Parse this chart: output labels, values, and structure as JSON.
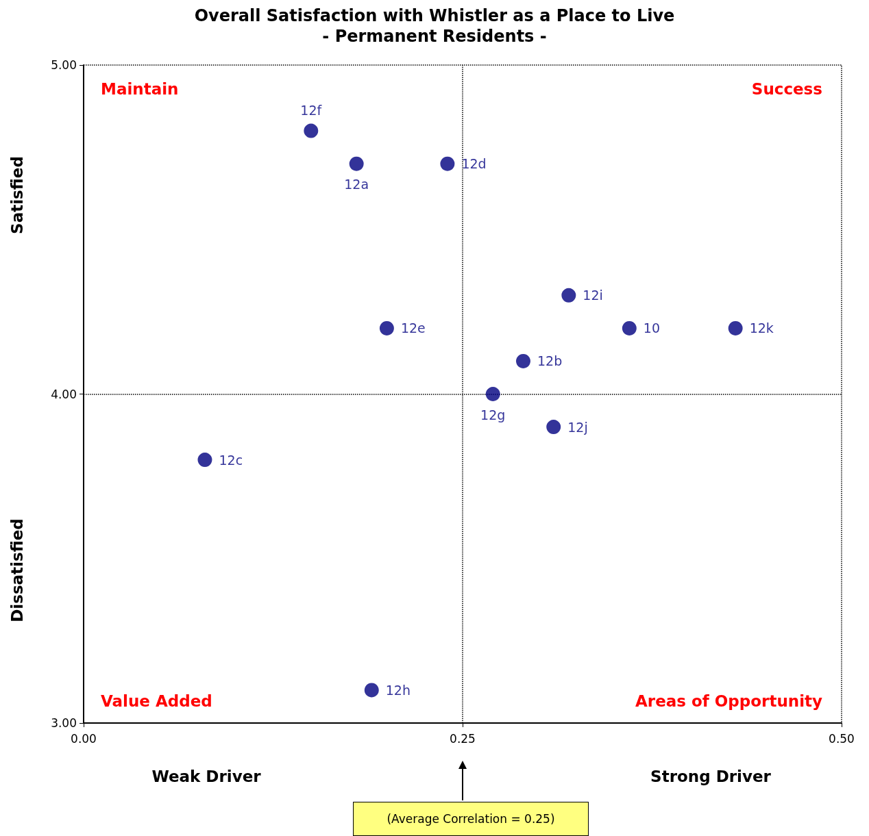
{
  "chart_data": {
    "type": "scatter",
    "title": "Overall Satisfaction with Whistler as a Place to Live",
    "subtitle": "- Permanent Residents -",
    "xlim": [
      0,
      0.5
    ],
    "xticks": [
      {
        "value": 0,
        "label": "0.00"
      },
      {
        "value": 0.25,
        "label": "0.25"
      },
      {
        "value": 0.5,
        "label": "0.50"
      }
    ],
    "ylim": [
      3,
      5
    ],
    "yticks": [
      {
        "value": 3,
        "label": "3.00"
      },
      {
        "value": 4,
        "label": "4.00"
      },
      {
        "value": 5,
        "label": "5.00"
      }
    ],
    "grid": false,
    "legend": false,
    "marker": "circle",
    "series": [
      {
        "name": "12f",
        "color": "#000080",
        "x": [
          0.15
        ],
        "values": [
          4.8
        ]
      },
      {
        "name": "12a",
        "color": "#000080",
        "x": [
          0.18
        ],
        "values": [
          4.7
        ]
      },
      {
        "name": "12d",
        "color": "#000080",
        "x": [
          0.24
        ],
        "values": [
          4.7
        ]
      },
      {
        "name": "12i",
        "color": "#000080",
        "x": [
          0.32
        ],
        "values": [
          4.3
        ]
      },
      {
        "name": "10",
        "color": "#000080",
        "x": [
          0.36
        ],
        "values": [
          4.2
        ]
      },
      {
        "name": "12k",
        "color": "#000080",
        "x": [
          0.43
        ],
        "values": [
          4.2
        ]
      },
      {
        "name": "12e",
        "color": "#000080",
        "x": [
          0.2
        ],
        "values": [
          4.2
        ]
      },
      {
        "name": "12b",
        "color": "#000080",
        "x": [
          0.29
        ],
        "values": [
          4.1
        ]
      },
      {
        "name": "12g",
        "color": "#000080",
        "x": [
          0.27
        ],
        "values": [
          4.0
        ]
      },
      {
        "name": "12j",
        "color": "#000080",
        "x": [
          0.31
        ],
        "values": [
          3.9
        ]
      },
      {
        "name": "12c",
        "color": "#000080",
        "x": [
          0.08
        ],
        "values": [
          3.8
        ]
      },
      {
        "name": "12h",
        "color": "#000080",
        "x": [
          0.19
        ],
        "values": [
          3.1
        ]
      }
    ],
    "ref_lines": [
      {
        "axis": "x",
        "value": 0.25,
        "color": "#000000",
        "line_style": "dotted"
      },
      {
        "axis": "y",
        "value": 4,
        "color": "#000000",
        "line_style": "dotted"
      }
    ],
    "annotations": [
      "Maintain",
      "Success",
      "Value Added",
      "Areas of Opportunity",
      "Weak Driver",
      "Strong Driver",
      "Satisfied",
      "Dissatisfied",
      "(Average Correlation = 0.25)"
    ]
  }
}
